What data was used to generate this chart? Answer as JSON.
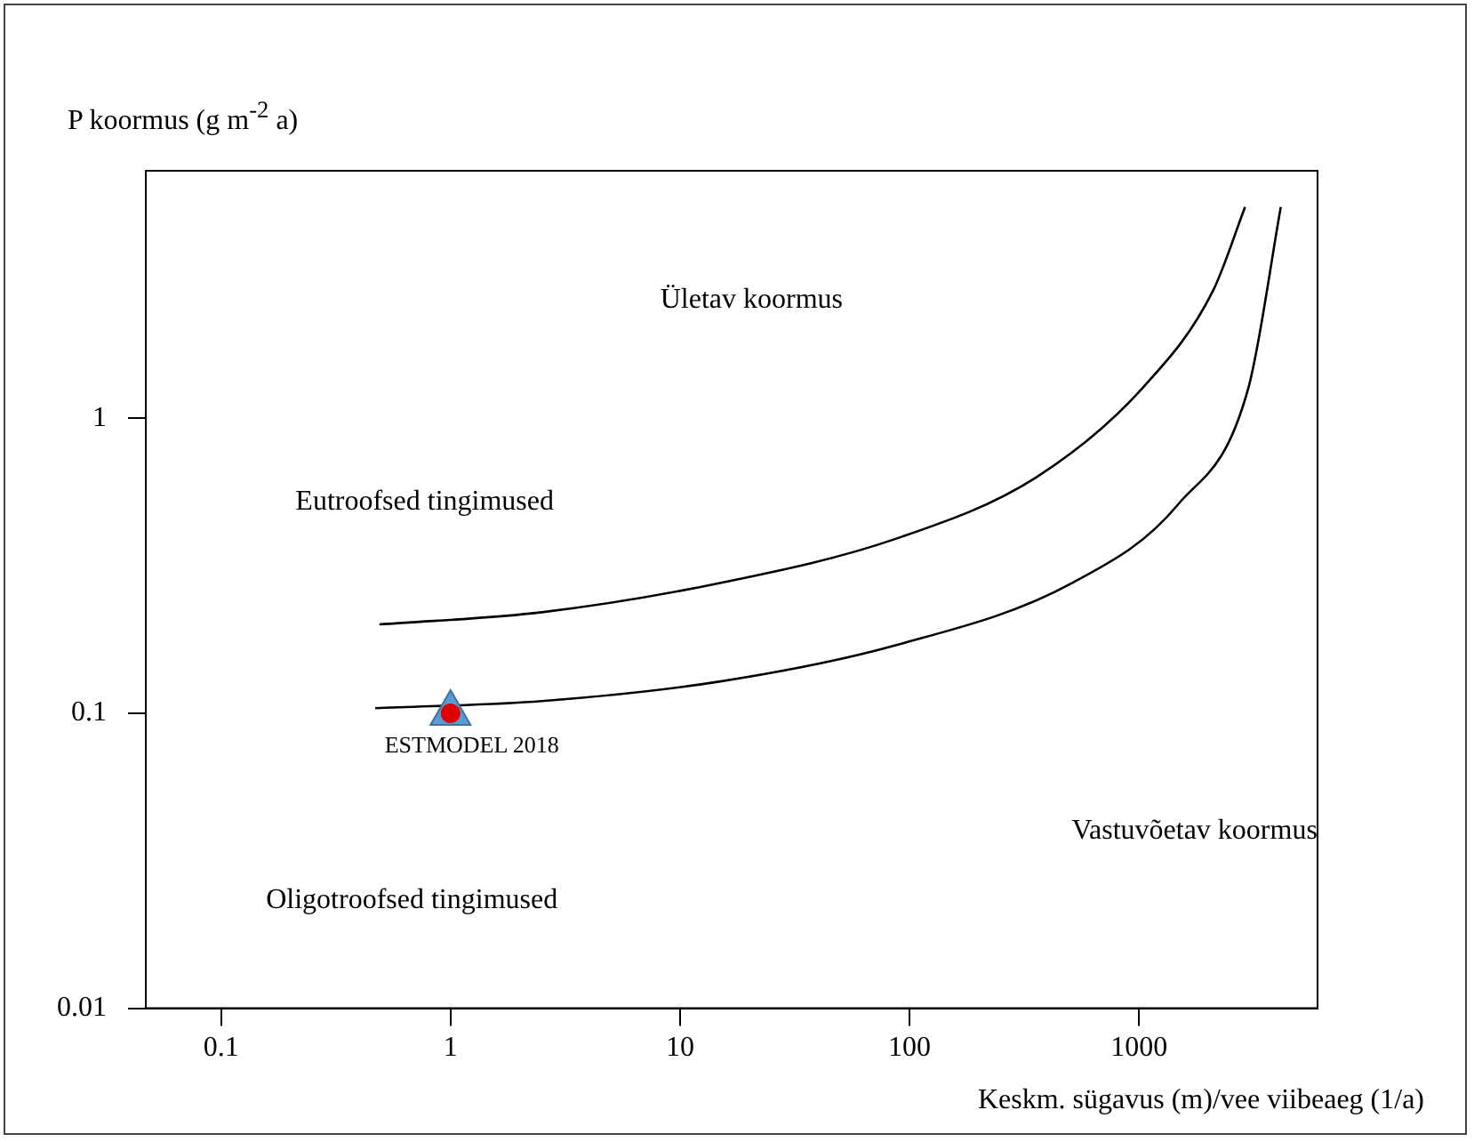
{
  "chart_data": {
    "type": "line",
    "xlabel": "Keskm. sügavus (m)/vee viibeaeg (1/a)",
    "ylabel": "P koormus (g m$^{-2}$ a)",
    "log": "xy",
    "xlim": [
      0.047,
      6000
    ],
    "ylim": [
      0.01,
      6.9
    ],
    "xticks": [
      0.1,
      1,
      10,
      100,
      1000
    ],
    "yticks": [
      0.01,
      0.1,
      1
    ],
    "grid": false,
    "legend": false,
    "series": [
      {
        "color": "#000000",
        "x": [
          0.49,
          2.5,
          14.8,
          87,
          356,
          1040,
          2100,
          2900
        ],
        "values": [
          0.2,
          0.22,
          0.276,
          0.39,
          0.63,
          1.27,
          2.7,
          5.2
        ]
      },
      {
        "color": "#000000",
        "x": [
          0.47,
          2.5,
          14.8,
          87,
          510,
          1480,
          3000,
          4150
        ],
        "values": [
          0.104,
          0.11,
          0.128,
          0.17,
          0.276,
          0.51,
          1.27,
          5.2
        ]
      },
      {
        "type": "scatter",
        "marker": "triangle",
        "color": "#5b9bd5",
        "x": [
          1
        ],
        "values": [
          0.1
        ]
      },
      {
        "type": "scatter",
        "marker": "circle",
        "color": "#e00000",
        "x": [
          1
        ],
        "values": [
          0.1
        ]
      }
    ],
    "annotations": [
      {
        "text": "ESTMODEL 2018",
        "x": 1,
        "y": 0.1
      },
      "Ületav koormus",
      "Eutroofsed tingimused",
      "Vastuvõetav koormus",
      "Oligotroofsed tingimused"
    ]
  }
}
